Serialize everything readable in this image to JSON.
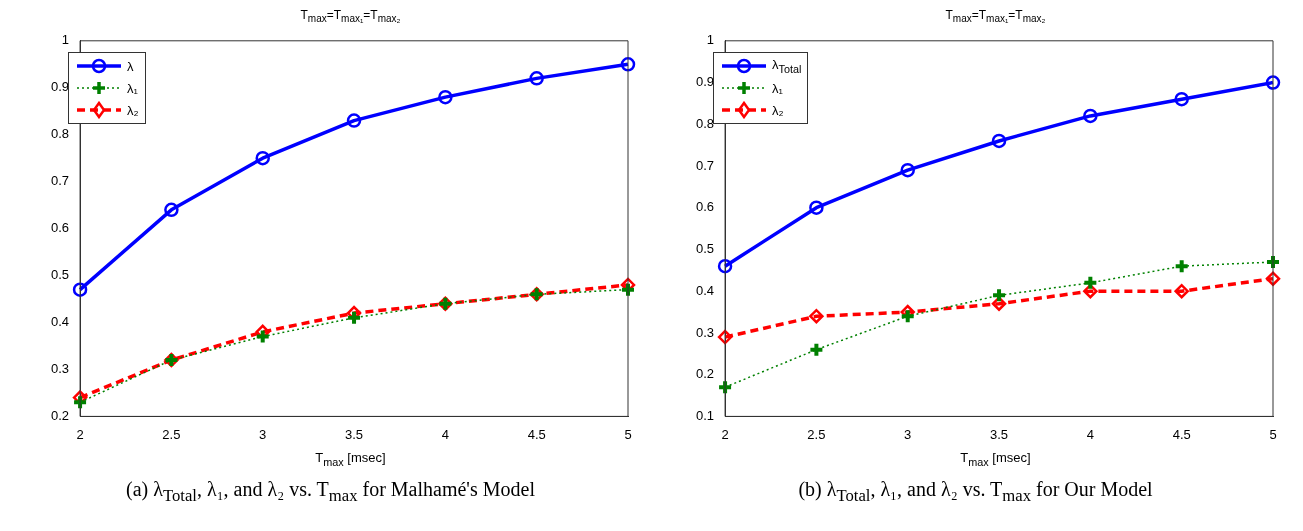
{
  "chart_data": [
    {
      "type": "line",
      "title": "T$_{max}$=T$_{max₁}$=T$_{max₂}$",
      "xlabel": "T$_{max}$ [msec]",
      "x": [
        2,
        2.5,
        3,
        3.5,
        4,
        4.5,
        5
      ],
      "xlim": [
        2,
        5
      ],
      "xticks": [
        2,
        2.5,
        3,
        3.5,
        4,
        4.5,
        5
      ],
      "ylim": [
        0.2,
        1
      ],
      "yticks": [
        0.2,
        0.3,
        0.4,
        0.5,
        0.6,
        0.7,
        0.8,
        0.9,
        1
      ],
      "grid": false,
      "legend": "top left",
      "annotations": [
        "(a) λ$_{Total}$, λ₁, and λ₂ vs. T$_{max}$ for Malhamé's Model"
      ],
      "series": [
        {
          "name": "λ",
          "color": "#0000ff",
          "marker": "circle",
          "line_style": "solid",
          "values": [
            0.47,
            0.64,
            0.75,
            0.83,
            0.88,
            0.92,
            0.95
          ]
        },
        {
          "name": "λ₁",
          "color": "#008000",
          "marker": "cross",
          "line_style": "dotted",
          "values": [
            0.23,
            0.32,
            0.37,
            0.41,
            0.44,
            0.46,
            0.47
          ]
        },
        {
          "name": "λ₂",
          "color": "#ff0000",
          "marker": "diamond",
          "line_style": "dashed",
          "values": [
            0.24,
            0.32,
            0.38,
            0.42,
            0.44,
            0.46,
            0.48
          ]
        }
      ]
    },
    {
      "type": "line",
      "title": "T$_{max}$=T$_{max₁}$=T$_{max₂}$",
      "xlabel": "T$_{max}$ [msec]",
      "x": [
        2,
        2.5,
        3,
        3.5,
        4,
        4.5,
        5
      ],
      "xlim": [
        2,
        5
      ],
      "xticks": [
        2,
        2.5,
        3,
        3.5,
        4,
        4.5,
        5
      ],
      "ylim": [
        0.1,
        1
      ],
      "yticks": [
        0.1,
        0.2,
        0.3,
        0.4,
        0.5,
        0.6,
        0.7,
        0.8,
        0.9,
        1
      ],
      "grid": false,
      "legend": "top left",
      "annotations": [
        "(b) λ$_{Total}$, λ₁, and λ₂ vs. T$_{max}$ for Our Model"
      ],
      "series": [
        {
          "name": "λ$_{Total}$",
          "color": "#0000ff",
          "marker": "circle",
          "line_style": "solid",
          "values": [
            0.46,
            0.6,
            0.69,
            0.76,
            0.82,
            0.86,
            0.9
          ]
        },
        {
          "name": "λ₁",
          "color": "#008000",
          "marker": "cross",
          "line_style": "dotted",
          "values": [
            0.17,
            0.26,
            0.34,
            0.39,
            0.42,
            0.46,
            0.47
          ]
        },
        {
          "name": "λ₂",
          "color": "#ff0000",
          "marker": "diamond",
          "line_style": "dashed",
          "values": [
            0.29,
            0.34,
            0.35,
            0.37,
            0.4,
            0.4,
            0.43
          ]
        }
      ]
    }
  ]
}
